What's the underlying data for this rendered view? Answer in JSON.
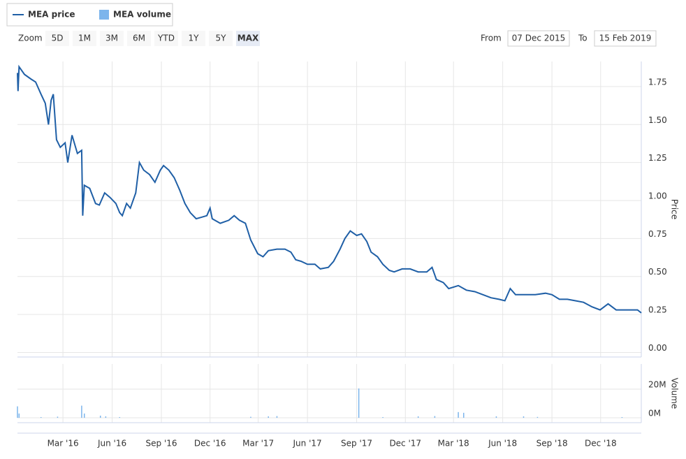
{
  "range_selector": {
    "label": "Zoom",
    "buttons": [
      "5D",
      "1M",
      "3M",
      "6M",
      "YTD",
      "1Y",
      "5Y",
      "MAX"
    ],
    "active": 7,
    "disabled": [
      6
    ],
    "from_label": "From",
    "from": "07 Dec 2015",
    "to_label": "To",
    "to": "15 Feb 2019"
  },
  "chart_data": [
    {
      "type": "line",
      "ylabel": "Price",
      "series": [
        {
          "name": "MEA price",
          "color": "#1f5fa6",
          "x": [
            "2015-12-07",
            "2015-12-08",
            "2015-12-10",
            "2015-12-20",
            "2016-01-01",
            "2016-01-10",
            "2016-01-20",
            "2016-01-28",
            "2016-02-03",
            "2016-02-08",
            "2016-02-12",
            "2016-02-18",
            "2016-02-25",
            "2016-03-05",
            "2016-03-10",
            "2016-03-18",
            "2016-03-28",
            "2016-04-05",
            "2016-04-07",
            "2016-04-10",
            "2016-04-20",
            "2016-05-01",
            "2016-05-08",
            "2016-05-18",
            "2016-05-28",
            "2016-06-08",
            "2016-06-15",
            "2016-06-20",
            "2016-06-28",
            "2016-07-05",
            "2016-07-15",
            "2016-07-22",
            "2016-07-30",
            "2016-08-10",
            "2016-08-20",
            "2016-08-30",
            "2016-09-05",
            "2016-09-15",
            "2016-09-25",
            "2016-10-05",
            "2016-10-15",
            "2016-10-25",
            "2016-11-05",
            "2016-11-15",
            "2016-11-25",
            "2016-12-01",
            "2016-12-05",
            "2016-12-20",
            "2017-01-05",
            "2017-01-15",
            "2017-01-25",
            "2017-02-05",
            "2017-02-15",
            "2017-02-28",
            "2017-03-10",
            "2017-03-20",
            "2017-04-05",
            "2017-04-20",
            "2017-05-01",
            "2017-05-10",
            "2017-05-20",
            "2017-06-01",
            "2017-06-15",
            "2017-06-25",
            "2017-07-10",
            "2017-07-20",
            "2017-08-01",
            "2017-08-10",
            "2017-08-20",
            "2017-09-01",
            "2017-09-10",
            "2017-09-20",
            "2017-09-28",
            "2017-10-10",
            "2017-10-20",
            "2017-11-01",
            "2017-11-10",
            "2017-11-25",
            "2017-12-10",
            "2017-12-25",
            "2018-01-10",
            "2018-01-20",
            "2018-01-28",
            "2018-02-10",
            "2018-02-20",
            "2018-03-10",
            "2018-03-25",
            "2018-04-10",
            "2018-04-25",
            "2018-05-10",
            "2018-05-25",
            "2018-06-05",
            "2018-06-15",
            "2018-06-25",
            "2018-07-15",
            "2018-08-01",
            "2018-08-20",
            "2018-09-01",
            "2018-09-15",
            "2018-09-30",
            "2018-10-15",
            "2018-10-30",
            "2018-11-15",
            "2018-11-30",
            "2018-12-15",
            "2018-12-30",
            "2019-01-15",
            "2019-01-30",
            "2019-02-08",
            "2019-02-15"
          ],
          "values": [
            1.84,
            1.72,
            1.88,
            1.83,
            1.8,
            1.78,
            1.7,
            1.64,
            1.5,
            1.66,
            1.7,
            1.4,
            1.35,
            1.38,
            1.25,
            1.43,
            1.31,
            1.33,
            0.9,
            1.1,
            1.08,
            0.98,
            0.97,
            1.05,
            1.02,
            0.98,
            0.92,
            0.9,
            0.98,
            0.95,
            1.05,
            1.25,
            1.2,
            1.17,
            1.12,
            1.2,
            1.23,
            1.2,
            1.15,
            1.07,
            0.98,
            0.92,
            0.88,
            0.89,
            0.9,
            0.95,
            0.88,
            0.85,
            0.87,
            0.9,
            0.87,
            0.85,
            0.74,
            0.65,
            0.63,
            0.67,
            0.68,
            0.68,
            0.66,
            0.61,
            0.6,
            0.58,
            0.58,
            0.55,
            0.56,
            0.6,
            0.68,
            0.75,
            0.8,
            0.77,
            0.78,
            0.73,
            0.66,
            0.63,
            0.58,
            0.54,
            0.53,
            0.55,
            0.55,
            0.53,
            0.53,
            0.56,
            0.48,
            0.46,
            0.42,
            0.44,
            0.41,
            0.4,
            0.38,
            0.36,
            0.35,
            0.34,
            0.42,
            0.38,
            0.38,
            0.38,
            0.39,
            0.38,
            0.35,
            0.35,
            0.34,
            0.33,
            0.3,
            0.28,
            0.32,
            0.28,
            0.28,
            0.28,
            0.28,
            0.26
          ]
        }
      ],
      "xlim": [
        "2015-12-07",
        "2019-02-15"
      ],
      "xticks": [
        {
          "value": "2016-03-01",
          "label": "Mar '16"
        },
        {
          "value": "2016-06-01",
          "label": "Jun '16"
        },
        {
          "value": "2016-09-01",
          "label": "Sep '16"
        },
        {
          "value": "2016-12-01",
          "label": "Dec '16"
        },
        {
          "value": "2017-03-01",
          "label": "Mar '17"
        },
        {
          "value": "2017-06-01",
          "label": "Jun '17"
        },
        {
          "value": "2017-09-01",
          "label": "Sep '17"
        },
        {
          "value": "2017-12-01",
          "label": "Dec '17"
        },
        {
          "value": "2018-03-01",
          "label": "Mar '18"
        },
        {
          "value": "2018-06-01",
          "label": "Jun '18"
        },
        {
          "value": "2018-09-01",
          "label": "Sep '18"
        },
        {
          "value": "2018-12-01",
          "label": "Dec '18"
        }
      ],
      "ylim": [
        -0.03,
        1.915
      ],
      "yticks": [
        {
          "value": 0,
          "label": "0.00"
        },
        0.25,
        {
          "value": 0.5,
          "label": "0.50"
        },
        0.75,
        {
          "value": 1,
          "label": "1.00"
        },
        1.25,
        {
          "value": 1.5,
          "label": "1.50"
        },
        1.75
      ],
      "grid": true
    },
    {
      "type": "bar",
      "ylabel": "Volume",
      "series": [
        {
          "name": "MEA volume",
          "color": "#7cb5ec",
          "x": [
            "2015-12-07",
            "2015-12-10",
            "2016-01-20",
            "2016-02-20",
            "2016-04-05",
            "2016-04-10",
            "2016-05-10",
            "2016-05-20",
            "2016-06-15",
            "2017-02-15",
            "2017-03-20",
            "2017-04-05",
            "2017-09-05",
            "2017-10-20",
            "2017-12-25",
            "2018-01-25",
            "2018-03-10",
            "2018-03-20",
            "2018-05-20",
            "2018-07-10",
            "2018-08-05",
            "2019-01-10"
          ],
          "values": [
            8000000,
            3000000,
            500000,
            800000,
            8500000,
            3000000,
            1500000,
            1000000,
            500000,
            700000,
            1000000,
            1200000,
            20500000,
            500000,
            1000000,
            1200000,
            4000000,
            3500000,
            1000000,
            1000000,
            600000,
            500000
          ]
        }
      ],
      "ylim": [
        -3400000,
        37600000
      ],
      "yticks": [
        {
          "value": 0,
          "label": "0M"
        },
        {
          "value": 20000000,
          "label": "20M"
        }
      ],
      "grid": true
    }
  ]
}
